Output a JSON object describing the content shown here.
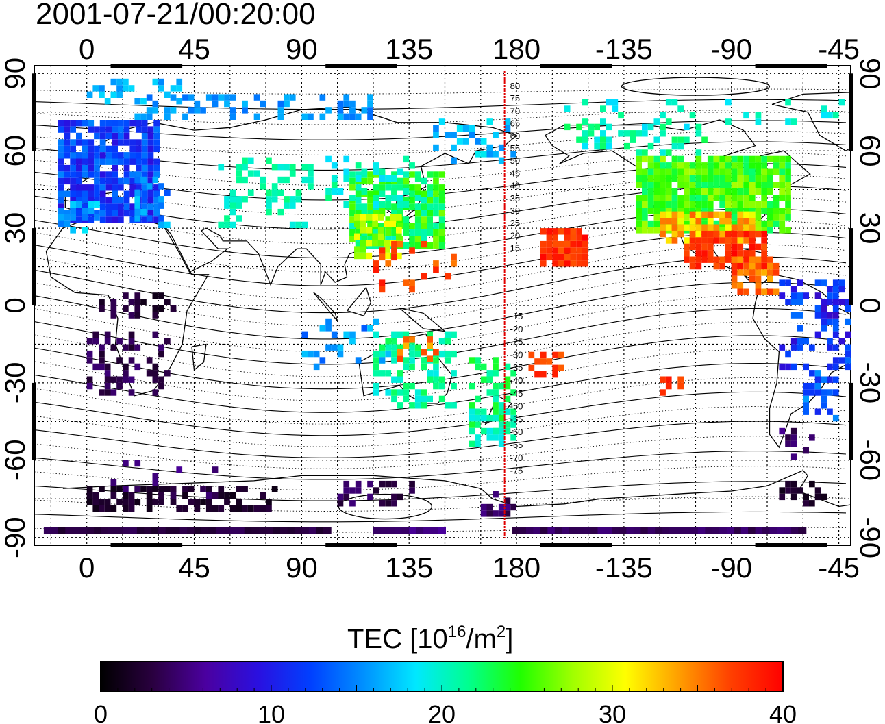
{
  "title": "2001-07-21/00:20:00",
  "map": {
    "top_lon_ticks": [
      "0",
      "45",
      "90",
      "135",
      "180",
      "-135",
      "-90",
      "-45"
    ],
    "bottom_lon_ticks": [
      "0",
      "45",
      "90",
      "135",
      "180",
      "-135",
      "-90",
      "-45"
    ],
    "left_lat_ticks": [
      "90",
      "60",
      "30",
      "0",
      "-30",
      "-60",
      "-90"
    ],
    "right_lat_ticks": [
      "90",
      "60",
      "30",
      "0",
      "-30",
      "-60",
      "-90"
    ],
    "lon_range": [
      -22,
      320
    ],
    "lat_range": [
      -93,
      93
    ],
    "meridian_line_lon": 175,
    "meridian_labels_north": [
      "80",
      "75",
      "70",
      "65",
      "60",
      "55",
      "50",
      "45",
      "40",
      "35",
      "30",
      "25",
      "20",
      "15"
    ],
    "meridian_labels_south": [
      "-15",
      "-20",
      "-25",
      "-30",
      "-35",
      "-40",
      "-45",
      "-50",
      "-55",
      "-60",
      "-65",
      "-70",
      "-75"
    ],
    "meridian_line_color": "#e00000"
  },
  "colorbar": {
    "title_main": "TEC  [10",
    "title_sup1": "16",
    "title_mid": "/m",
    "title_sup2": "2",
    "title_end": "]",
    "ticks": [
      "0",
      "10",
      "20",
      "30",
      "40"
    ],
    "range": [
      0,
      40
    ],
    "colors": [
      "#000000",
      "#2a0040",
      "#4b00a0",
      "#2a10e0",
      "#0040ff",
      "#0090ff",
      "#00e8ff",
      "#00ff90",
      "#20ff00",
      "#a0ff00",
      "#ffff00",
      "#ffa000",
      "#ff4000",
      "#ff0000"
    ]
  }
}
